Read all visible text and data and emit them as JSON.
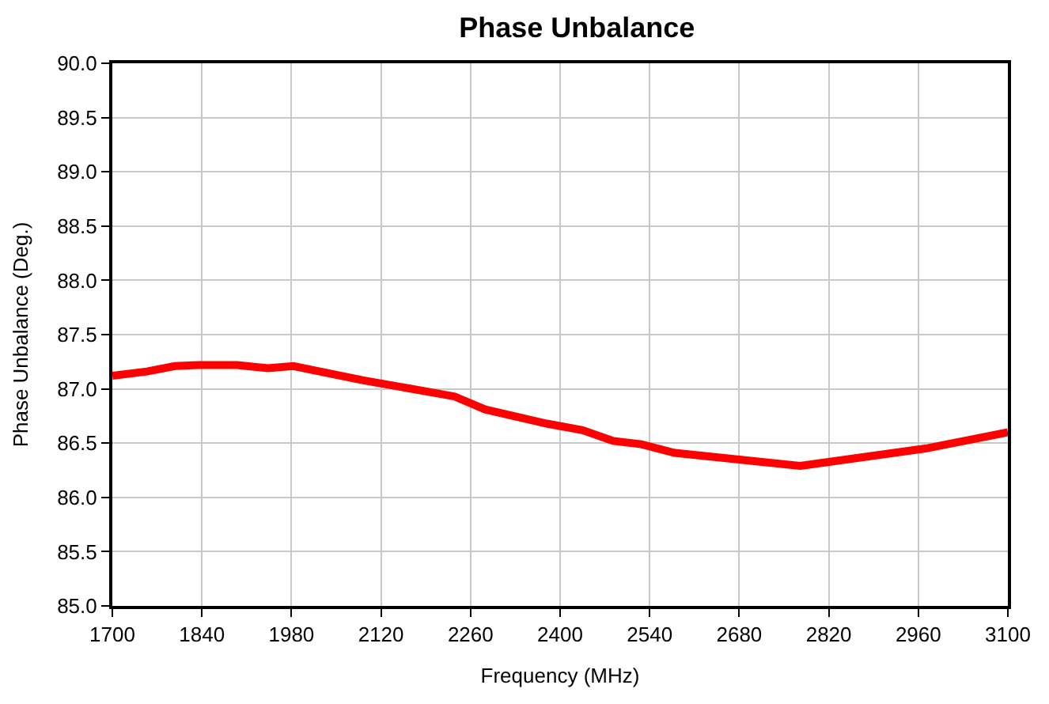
{
  "chart_data": {
    "type": "line",
    "title": "Phase Unbalance",
    "xlabel": "Frequency (MHz)",
    "ylabel": "Phase Unbalance (Deg.)",
    "x": [
      1700,
      1754,
      1798,
      1834,
      1895,
      1943,
      1983,
      2091,
      2235,
      2283,
      2379,
      2435,
      2483,
      2527,
      2579,
      2775,
      2971,
      3100
    ],
    "series": [
      {
        "color": "#ff0000",
        "values": [
          87.12,
          87.16,
          87.21,
          87.22,
          87.22,
          87.19,
          87.21,
          87.08,
          86.93,
          86.81,
          86.68,
          86.62,
          86.52,
          86.49,
          86.41,
          86.29,
          86.45,
          86.6
        ]
      }
    ],
    "xlim": [
      1700,
      3100
    ],
    "xticks": [
      1700,
      1840,
      1980,
      2120,
      2260,
      2400,
      2540,
      2680,
      2820,
      2960,
      3100
    ],
    "ylim": [
      85.0,
      90.0
    ],
    "yticks": [
      {
        "value": 85,
        "label": "85.0"
      },
      {
        "value": 85.5,
        "label": "85.5"
      },
      {
        "value": 86,
        "label": "86.0"
      },
      {
        "value": 86.5,
        "label": "86.5"
      },
      {
        "value": 87,
        "label": "87.0"
      },
      {
        "value": 87.5,
        "label": "87.5"
      },
      {
        "value": 88,
        "label": "88.0"
      },
      {
        "value": 88.5,
        "label": "88.5"
      },
      {
        "value": 89,
        "label": "89.0"
      },
      {
        "value": 89.5,
        "label": "89.5"
      },
      {
        "value": 90,
        "label": "90.0"
      }
    ],
    "grid": true,
    "legend": false,
    "marker": "none",
    "line_style": "solid"
  }
}
